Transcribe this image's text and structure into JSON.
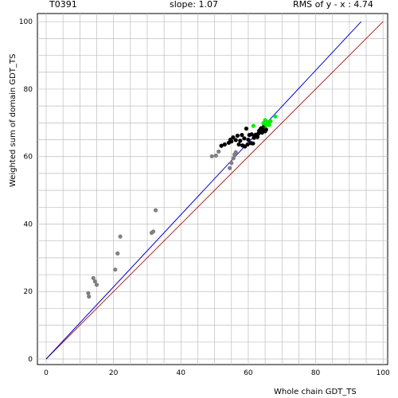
{
  "header": {
    "target": "T0391",
    "slope": "slope: 1.07",
    "rms": "RMS of  y - x : 4.74"
  },
  "chart_data": {
    "type": "scatter",
    "xlabel": "Whole chain GDT_TS",
    "ylabel": "Weighted sum of domain GDT_TS",
    "xlim": [
      0,
      100
    ],
    "ylim": [
      0,
      100
    ],
    "x_ticks": [
      "0",
      "20",
      "40",
      "60",
      "80",
      "100"
    ],
    "y_ticks": [
      "0",
      "20",
      "40",
      "60",
      "80",
      "100"
    ],
    "grid": true,
    "colors": {
      "grid": "#bdbdbd",
      "identity_line": "#b22222",
      "fit_line": "#0000cd",
      "gray_points": "#808080",
      "black_points": "#000000",
      "green_points": "#00ee00"
    },
    "lines": [
      {
        "kind": "identity",
        "x": [
          0,
          100
        ],
        "y": [
          0,
          100
        ]
      },
      {
        "kind": "fit",
        "x": [
          0,
          93.5
        ],
        "y": [
          0,
          100
        ]
      }
    ],
    "series": [
      {
        "color": "#808080",
        "points": [
          [
            12.5,
            19.5
          ],
          [
            12.7,
            18.5
          ],
          [
            14.0,
            24.0
          ],
          [
            14.5,
            23.0
          ],
          [
            15.0,
            22.0
          ],
          [
            20.5,
            26.5
          ],
          [
            21.2,
            31.3
          ],
          [
            22.0,
            36.3
          ],
          [
            31.3,
            37.4
          ],
          [
            31.8,
            37.8
          ],
          [
            32.5,
            44.1
          ],
          [
            49.2,
            60.1
          ],
          [
            50.4,
            60.3
          ],
          [
            51.2,
            61.5
          ],
          [
            54.5,
            56.6
          ],
          [
            55.0,
            58.1
          ],
          [
            55.6,
            59.5
          ],
          [
            55.9,
            60.6
          ],
          [
            56.3,
            61.3
          ]
        ]
      },
      {
        "color": "#000000",
        "points": [
          [
            52.0,
            63.2
          ],
          [
            53.0,
            63.6
          ],
          [
            54.2,
            64.1
          ],
          [
            54.7,
            65.0
          ],
          [
            55.0,
            64.5
          ],
          [
            55.5,
            65.7
          ],
          [
            56.3,
            64.9
          ],
          [
            56.8,
            66.2
          ],
          [
            57.2,
            63.6
          ],
          [
            57.6,
            64.7
          ],
          [
            58.1,
            66.4
          ],
          [
            58.3,
            63.3
          ],
          [
            58.8,
            65.4
          ],
          [
            59.0,
            63.0
          ],
          [
            59.4,
            68.3
          ],
          [
            59.8,
            63.6
          ],
          [
            60.0,
            65.0
          ],
          [
            60.3,
            66.4
          ],
          [
            60.8,
            64.0
          ],
          [
            61.0,
            66.6
          ],
          [
            61.4,
            63.9
          ],
          [
            61.7,
            65.6
          ],
          [
            62.0,
            66.2
          ],
          [
            62.2,
            66.5
          ],
          [
            62.7,
            65.8
          ],
          [
            63.0,
            66.8
          ],
          [
            63.2,
            67.6
          ],
          [
            63.5,
            67.9
          ],
          [
            63.8,
            68.4
          ],
          [
            64.1,
            67.1
          ],
          [
            64.4,
            67.9
          ],
          [
            64.7,
            69.1
          ],
          [
            65.0,
            67.5
          ],
          [
            65.3,
            68.0
          ]
        ]
      },
      {
        "color": "#00ee00",
        "points": [
          [
            61.5,
            69.1
          ],
          [
            64.5,
            69.9
          ],
          [
            65.0,
            70.8
          ],
          [
            65.3,
            69.3
          ],
          [
            65.8,
            70.2
          ],
          [
            66.2,
            69.4
          ],
          [
            66.6,
            70.5
          ],
          [
            68.0,
            71.9
          ]
        ]
      }
    ]
  }
}
